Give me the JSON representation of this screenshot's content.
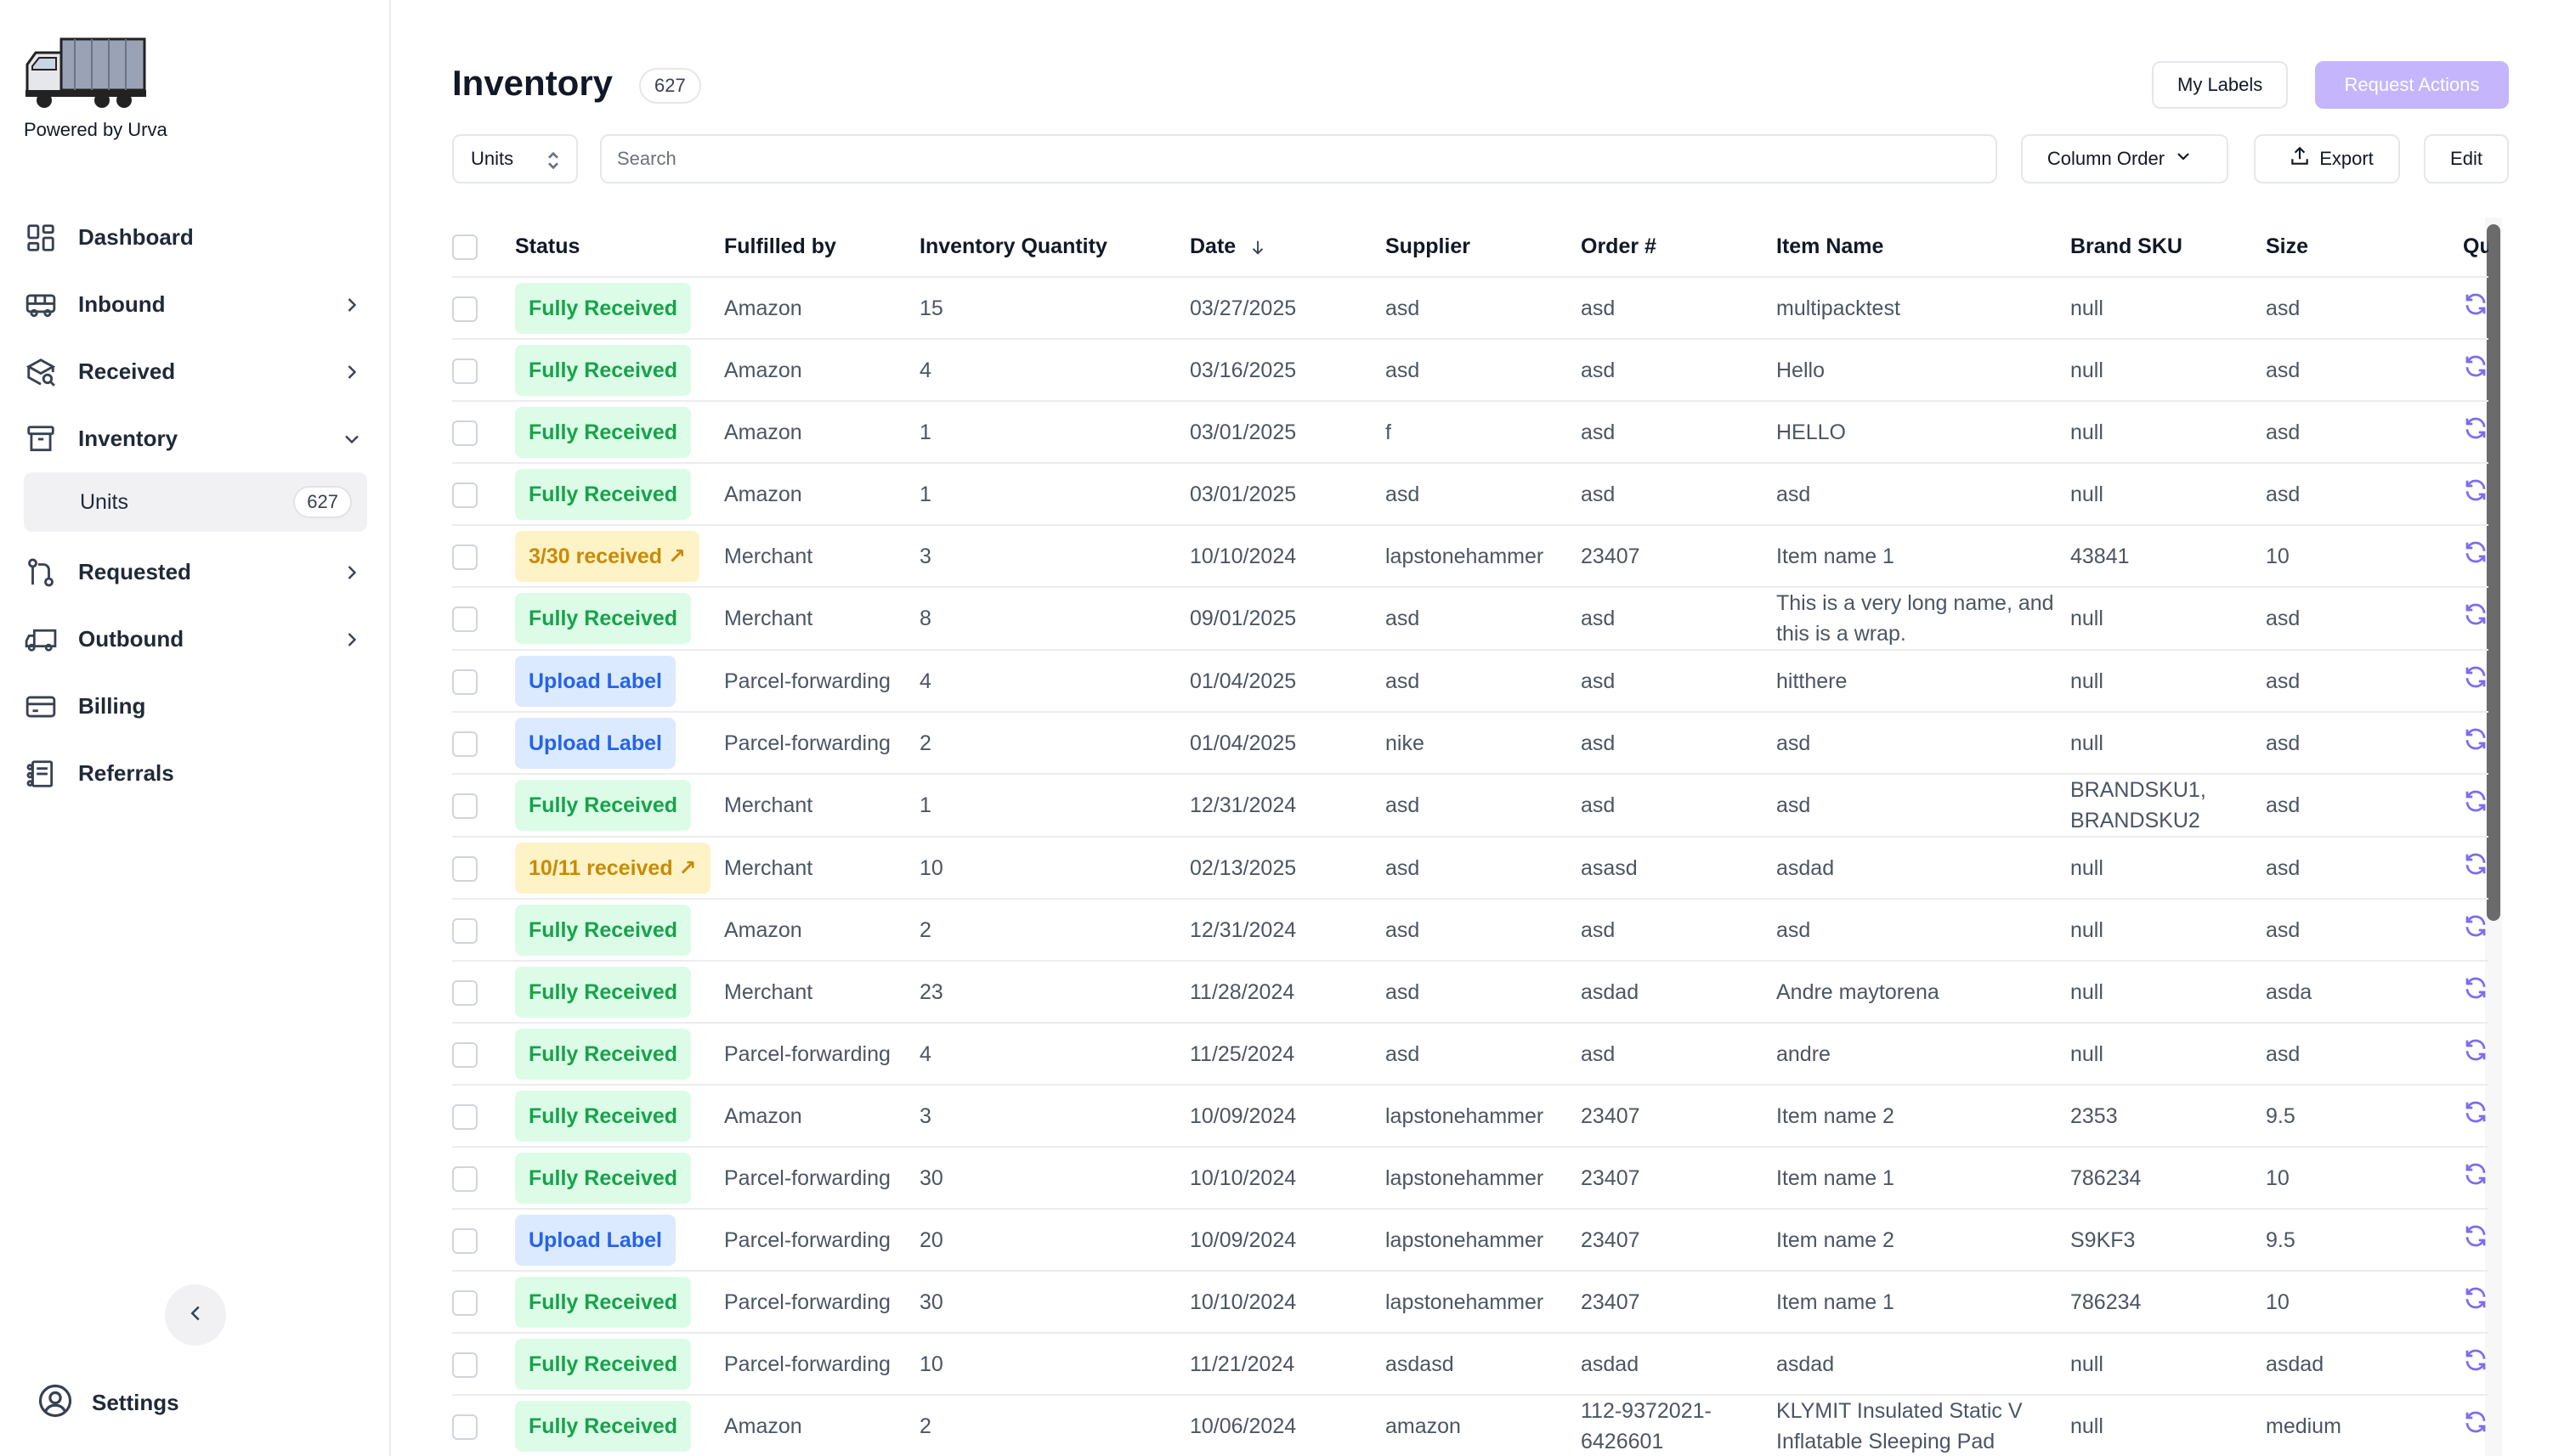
{
  "app": {
    "powered_by": "Powered by Urva"
  },
  "sidebar": {
    "items": [
      {
        "label": "Dashboard",
        "icon": "dashboard-icon",
        "has_chevron": false
      },
      {
        "label": "Inbound",
        "icon": "bus-icon",
        "has_chevron": true
      },
      {
        "label": "Received",
        "icon": "box-search-icon",
        "has_chevron": true
      },
      {
        "label": "Inventory",
        "icon": "archive-icon",
        "has_chevron": true,
        "expanded": true
      },
      {
        "label": "Requested",
        "icon": "route-icon",
        "has_chevron": true
      },
      {
        "label": "Outbound",
        "icon": "truck-icon",
        "has_chevron": true
      },
      {
        "label": "Billing",
        "icon": "card-icon",
        "has_chevron": false
      },
      {
        "label": "Referrals",
        "icon": "referral-icon",
        "has_chevron": false
      }
    ],
    "sub_item": {
      "label": "Units",
      "count": "627"
    },
    "settings_label": "Settings"
  },
  "header": {
    "title": "Inventory",
    "count": "627",
    "my_labels": "My Labels",
    "request_actions": "Request Actions"
  },
  "toolbar": {
    "units_select": "Units",
    "search_placeholder": "Search",
    "column_order": "Column Order",
    "export": "Export",
    "edit": "Edit"
  },
  "colors": {
    "accent": "#c4b5fd",
    "refresh": "#7c6cf0"
  },
  "table": {
    "columns": [
      "Status",
      "Fulfilled by",
      "Inventory Quantity",
      "Date",
      "Supplier",
      "Order #",
      "Item Name",
      "Brand SKU",
      "Size",
      "Qu"
    ],
    "rows": [
      {
        "status": "Fully Received",
        "tone": "green",
        "fulfilled": "Amazon",
        "qty": "15",
        "date": "03/27/2025",
        "supplier": "asd",
        "order": "asd",
        "item": "multipacktest",
        "sku": "null",
        "size": "asd"
      },
      {
        "status": "Fully Received",
        "tone": "green",
        "fulfilled": "Amazon",
        "qty": "4",
        "date": "03/16/2025",
        "supplier": "asd",
        "order": "asd",
        "item": "Hello",
        "sku": "null",
        "size": "asd"
      },
      {
        "status": "Fully Received",
        "tone": "green",
        "fulfilled": "Amazon",
        "qty": "1",
        "date": "03/01/2025",
        "supplier": "f",
        "order": "asd",
        "item": "HELLO",
        "sku": "null",
        "size": "asd"
      },
      {
        "status": "Fully Received",
        "tone": "green",
        "fulfilled": "Amazon",
        "qty": "1",
        "date": "03/01/2025",
        "supplier": "asd",
        "order": "asd",
        "item": "asd",
        "sku": "null",
        "size": "asd"
      },
      {
        "status": "3/30 received ↗",
        "tone": "yellow",
        "fulfilled": "Merchant",
        "qty": "3",
        "date": "10/10/2024",
        "supplier": "lapstonehammer",
        "order": "23407",
        "item": "Item name 1",
        "sku": "43841",
        "size": "10"
      },
      {
        "status": "Fully Received",
        "tone": "green",
        "fulfilled": "Merchant",
        "qty": "8",
        "date": "09/01/2025",
        "supplier": "asd",
        "order": "asd",
        "item": "This is a very long name, and this is a wrap.",
        "sku": "null",
        "size": "asd"
      },
      {
        "status": "Upload Label",
        "tone": "blue",
        "fulfilled": "Parcel-forwarding",
        "qty": "4",
        "date": "01/04/2025",
        "supplier": "asd",
        "order": "asd",
        "item": "hitthere",
        "sku": "null",
        "size": "asd"
      },
      {
        "status": "Upload Label",
        "tone": "blue",
        "fulfilled": "Parcel-forwarding",
        "qty": "2",
        "date": "01/04/2025",
        "supplier": "nike",
        "order": "asd",
        "item": "asd",
        "sku": "null",
        "size": "asd"
      },
      {
        "status": "Fully Received",
        "tone": "green",
        "fulfilled": "Merchant",
        "qty": "1",
        "date": "12/31/2024",
        "supplier": "asd",
        "order": "asd",
        "item": "asd",
        "sku": "BRANDSKU1, BRANDSKU2",
        "size": "asd"
      },
      {
        "status": "10/11 received ↗",
        "tone": "yellow",
        "fulfilled": "Merchant",
        "qty": "10",
        "date": "02/13/2025",
        "supplier": "asd",
        "order": "asasd",
        "item": "asdad",
        "sku": "null",
        "size": "asd"
      },
      {
        "status": "Fully Received",
        "tone": "green",
        "fulfilled": "Amazon",
        "qty": "2",
        "date": "12/31/2024",
        "supplier": "asd",
        "order": "asd",
        "item": "asd",
        "sku": "null",
        "size": "asd"
      },
      {
        "status": "Fully Received",
        "tone": "green",
        "fulfilled": "Merchant",
        "qty": "23",
        "date": "11/28/2024",
        "supplier": "asd",
        "order": "asdad",
        "item": "Andre maytorena",
        "sku": "null",
        "size": "asda"
      },
      {
        "status": "Fully Received",
        "tone": "green",
        "fulfilled": "Parcel-forwarding",
        "qty": "4",
        "date": "11/25/2024",
        "supplier": "asd",
        "order": "asd",
        "item": "andre",
        "sku": "null",
        "size": "asd"
      },
      {
        "status": "Fully Received",
        "tone": "green",
        "fulfilled": "Amazon",
        "qty": "3",
        "date": "10/09/2024",
        "supplier": "lapstonehammer",
        "order": "23407",
        "item": "Item name 2",
        "sku": "2353",
        "size": "9.5"
      },
      {
        "status": "Fully Received",
        "tone": "green",
        "fulfilled": "Parcel-forwarding",
        "qty": "30",
        "date": "10/10/2024",
        "supplier": "lapstonehammer",
        "order": "23407",
        "item": "Item name 1",
        "sku": "786234",
        "size": "10"
      },
      {
        "status": "Upload Label",
        "tone": "blue",
        "fulfilled": "Parcel-forwarding",
        "qty": "20",
        "date": "10/09/2024",
        "supplier": "lapstonehammer",
        "order": "23407",
        "item": "Item name 2",
        "sku": "S9KF3",
        "size": "9.5"
      },
      {
        "status": "Fully Received",
        "tone": "green",
        "fulfilled": "Parcel-forwarding",
        "qty": "30",
        "date": "10/10/2024",
        "supplier": "lapstonehammer",
        "order": "23407",
        "item": "Item name 1",
        "sku": "786234",
        "size": "10"
      },
      {
        "status": "Fully Received",
        "tone": "green",
        "fulfilled": "Parcel-forwarding",
        "qty": "10",
        "date": "11/21/2024",
        "supplier": "asdasd",
        "order": "asdad",
        "item": "asdad",
        "sku": "null",
        "size": "asdad"
      },
      {
        "status": "Fully Received",
        "tone": "green",
        "fulfilled": "Amazon",
        "qty": "2",
        "date": "10/06/2024",
        "supplier": "amazon",
        "order": "112-9372021-6426601",
        "item": "KLYMIT Insulated Static V Inflatable Sleeping Pad",
        "sku": "null",
        "size": "medium"
      }
    ]
  }
}
